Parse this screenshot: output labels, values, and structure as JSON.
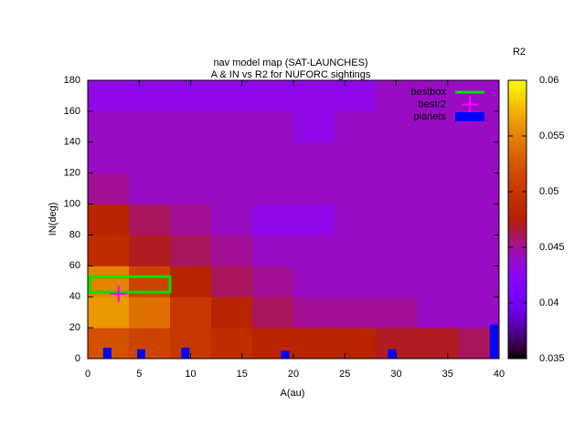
{
  "chart_data": {
    "type": "heatmap",
    "title": "nav model map (SAT-LAUNCHES)",
    "subtitle": "A & IN vs R2 for NUFORC sightings",
    "x_label": "A(au)",
    "y_label": "IN(deg)",
    "colorbar_label": "R2",
    "xlim": [
      0,
      40
    ],
    "xticks": [
      0,
      5,
      10,
      15,
      20,
      25,
      30,
      35,
      40
    ],
    "ylim": [
      0,
      180
    ],
    "yticks": [
      0,
      20,
      40,
      60,
      80,
      100,
      120,
      140,
      160,
      180
    ],
    "zlim": [
      0.035,
      0.06
    ],
    "zticks": [
      0.035,
      0.04,
      0.045,
      0.05,
      0.055,
      0.06
    ],
    "z": [
      [
        0.052,
        0.051,
        0.05,
        0.049,
        0.048,
        0.048,
        0.048,
        0.047,
        0.047,
        0.046
      ],
      [
        0.056,
        0.054,
        0.05,
        0.048,
        0.046,
        0.045,
        0.045,
        0.045,
        0.044,
        0.044
      ],
      [
        0.055,
        0.051,
        0.048,
        0.046,
        0.045,
        0.044,
        0.044,
        0.044,
        0.044,
        0.044
      ],
      [
        0.049,
        0.047,
        0.046,
        0.045,
        0.044,
        0.044,
        0.044,
        0.044,
        0.044,
        0.044
      ],
      [
        0.048,
        0.046,
        0.045,
        0.044,
        0.043,
        0.043,
        0.044,
        0.044,
        0.044,
        0.044
      ],
      [
        0.045,
        0.044,
        0.044,
        0.044,
        0.044,
        0.044,
        0.044,
        0.044,
        0.044,
        0.044
      ],
      [
        0.044,
        0.044,
        0.044,
        0.044,
        0.044,
        0.044,
        0.044,
        0.044,
        0.044,
        0.044
      ],
      [
        0.044,
        0.044,
        0.044,
        0.044,
        0.044,
        0.043,
        0.044,
        0.044,
        0.044,
        0.044
      ],
      [
        0.043,
        0.043,
        0.043,
        0.043,
        0.043,
        0.043,
        0.043,
        0.044,
        0.044,
        0.044
      ]
    ],
    "series": [
      {
        "name": "bestbox",
        "type": "box",
        "color": "#00e000",
        "x": [
          0,
          8
        ],
        "values": [
          43,
          53
        ]
      },
      {
        "name": "bestr2",
        "type": "point",
        "color": "#ff00ff",
        "x": [
          3
        ],
        "values": [
          42
        ]
      },
      {
        "name": "planets",
        "type": "bar",
        "color": "#0000ff",
        "x": [
          1.9,
          5.2,
          9.5,
          19.2,
          29.6,
          39.5
        ],
        "values": [
          7,
          6,
          7,
          5,
          6,
          22
        ]
      }
    ]
  }
}
